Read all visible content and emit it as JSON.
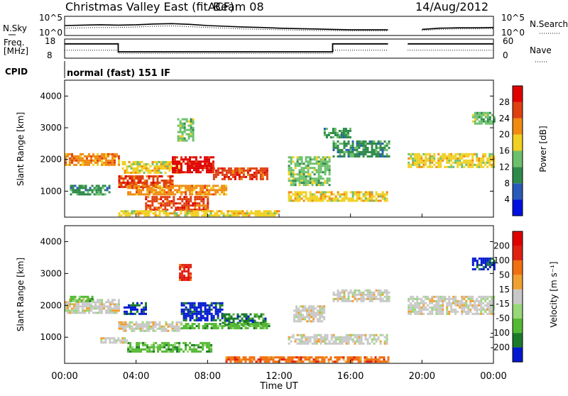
{
  "header": {
    "station": "Christmas Valley East (fitACF)",
    "beam": "Beam 08",
    "date": "14/Aug/2012"
  },
  "chart_data": [
    {
      "type": "line",
      "panel": "noise",
      "left_label": "N.Sky",
      "right_label": "N.Search",
      "left_ticks": [
        "10^5",
        "10^0"
      ],
      "right_ticks": [
        "10^5",
        "10^0"
      ],
      "x": [
        0,
        1,
        2,
        3,
        4,
        5,
        6,
        7,
        8,
        9,
        10,
        11,
        12,
        13,
        14,
        15,
        16,
        17,
        18.1,
        19.2,
        20,
        21,
        22,
        23,
        24
      ],
      "series": [
        {
          "values": [
            2.6,
            2.7,
            2.8,
            2.7,
            2.8,
            3.0,
            3.1,
            2.9,
            2.6,
            2.4,
            2.2,
            2.1,
            1.9,
            1.8,
            1.7,
            1.6,
            1.5,
            1.5,
            1.5,
            null,
            1.6,
            1.9,
            2.0,
            2.0,
            2.1
          ]
        },
        {
          "values": [
            1.9,
            2.0,
            2.1,
            2.1,
            2.2,
            2.4,
            2.5,
            2.3,
            2.1,
            1.9,
            1.7,
            1.6,
            1.5,
            1.4,
            1.3,
            1.3,
            1.2,
            1.2,
            1.2,
            null,
            1.3,
            1.6,
            1.7,
            1.7,
            1.8
          ]
        }
      ],
      "ylim": [
        0,
        5
      ]
    },
    {
      "type": "line",
      "panel": "frequency",
      "left_label_1": "Freq.",
      "left_label_2": "[MHz]",
      "right_label": "Nave",
      "left_ticks": [
        "18",
        "8"
      ],
      "right_ticks": [
        "60",
        "0"
      ],
      "x": [
        0,
        3,
        3,
        15,
        15,
        18.1,
        19.2,
        24
      ],
      "series": [
        {
          "values": [
            15,
            15,
            10,
            10,
            15,
            15,
            15,
            15
          ]
        },
        {
          "values": [
            11,
            11,
            9,
            9,
            11,
            11,
            11,
            11
          ]
        }
      ],
      "ylim": [
        6,
        18
      ]
    },
    {
      "type": "table",
      "panel": "cpid",
      "label": "CPID",
      "value": "normal (fast) 151 IF"
    },
    {
      "type": "heatmap",
      "panel": "power",
      "ylabel": "Slant Range [km]",
      "yticks": [
        "1000",
        "2000",
        "3000",
        "4000"
      ],
      "colorbar_label": "Power [dB]",
      "colorbar_ticks": [
        "4",
        "8",
        "12",
        "16",
        "20",
        "24",
        "28"
      ],
      "colors": [
        "#0010e0",
        "#2a5ab8",
        "#2e8a4a",
        "#6cc06c",
        "#f0d020",
        "#f08a10",
        "#e04010",
        "#e00000"
      ],
      "xlim": [
        0,
        24
      ],
      "ylim": [
        180,
        4500
      ],
      "gap": [
        18.1,
        19.2
      ],
      "bands": [
        {
          "x0": 0.0,
          "x1": 3.0,
          "y0": 1800,
          "y1": 2200,
          "level": 5
        },
        {
          "x0": 0.3,
          "x1": 2.5,
          "y0": 900,
          "y1": 1200,
          "level": 2
        },
        {
          "x0": 3.0,
          "x1": 6.0,
          "y0": 1150,
          "y1": 1500,
          "level": 6
        },
        {
          "x0": 3.2,
          "x1": 6.5,
          "y0": 1600,
          "y1": 1950,
          "level": 4
        },
        {
          "x0": 6.0,
          "x1": 8.3,
          "y0": 1600,
          "y1": 2100,
          "level": 7
        },
        {
          "x0": 8.3,
          "x1": 11.3,
          "y0": 1350,
          "y1": 1750,
          "level": 6
        },
        {
          "x0": 3.5,
          "x1": 9.0,
          "y0": 900,
          "y1": 1200,
          "level": 5
        },
        {
          "x0": 4.5,
          "x1": 8.0,
          "y0": 400,
          "y1": 850,
          "level": 6
        },
        {
          "x0": 3.0,
          "x1": 12.0,
          "y0": 200,
          "y1": 400,
          "level": 4
        },
        {
          "x0": 6.3,
          "x1": 7.2,
          "y0": 2600,
          "y1": 3300,
          "level": 3
        },
        {
          "x0": 12.5,
          "x1": 14.8,
          "y0": 1200,
          "y1": 2100,
          "level": 3
        },
        {
          "x0": 12.5,
          "x1": 18.1,
          "y0": 700,
          "y1": 1000,
          "level": 4
        },
        {
          "x0": 15.0,
          "x1": 18.1,
          "y0": 2100,
          "y1": 2600,
          "level": 2
        },
        {
          "x0": 14.5,
          "x1": 16.0,
          "y0": 2700,
          "y1": 3000,
          "level": 2
        },
        {
          "x0": 19.2,
          "x1": 24.0,
          "y0": 1750,
          "y1": 2200,
          "level": 4
        },
        {
          "x0": 22.8,
          "x1": 24.0,
          "y0": 3100,
          "y1": 3500,
          "level": 3
        }
      ]
    },
    {
      "type": "heatmap",
      "panel": "velocity",
      "ylabel": "Slant Range [km]",
      "yticks": [
        "1000",
        "2000",
        "3000",
        "4000"
      ],
      "colorbar_label": "Velocity [m s⁻¹]",
      "colorbar_ticks": [
        "200",
        "100",
        "50",
        "15",
        "-15",
        "-50",
        "-100",
        "-200"
      ],
      "colors": [
        "#0018d0",
        "#1a7a28",
        "#55b833",
        "#98d878",
        "#c8c8c8",
        "#f0a030",
        "#f07010",
        "#e02010",
        "#e00000"
      ],
      "xlim": [
        0,
        24
      ],
      "ylim": [
        180,
        4500
      ],
      "gap": [
        18.1,
        19.2
      ],
      "bands": [
        {
          "x0": 0.0,
          "x1": 3.0,
          "y0": 1750,
          "y1": 2200,
          "level": 4
        },
        {
          "x0": 0.3,
          "x1": 1.5,
          "y0": 2100,
          "y1": 2300,
          "level": 2
        },
        {
          "x0": 3.0,
          "x1": 6.5,
          "y0": 1200,
          "y1": 1500,
          "level": 4
        },
        {
          "x0": 3.3,
          "x1": 4.5,
          "y0": 1750,
          "y1": 2100,
          "level": 0
        },
        {
          "x0": 6.5,
          "x1": 8.8,
          "y0": 1550,
          "y1": 2100,
          "level": 0
        },
        {
          "x0": 8.8,
          "x1": 11.2,
          "y0": 1400,
          "y1": 1750,
          "level": 1
        },
        {
          "x0": 6.5,
          "x1": 11.5,
          "y0": 1250,
          "y1": 1450,
          "level": 2
        },
        {
          "x0": 3.5,
          "x1": 8.2,
          "y0": 550,
          "y1": 850,
          "level": 2
        },
        {
          "x0": 2.0,
          "x1": 3.5,
          "y0": 800,
          "y1": 1000,
          "level": 4
        },
        {
          "x0": 6.4,
          "x1": 7.0,
          "y0": 2800,
          "y1": 3300,
          "level": 7
        },
        {
          "x0": 9.0,
          "x1": 18.1,
          "y0": 200,
          "y1": 400,
          "level": 6
        },
        {
          "x0": 12.5,
          "x1": 18.1,
          "y0": 800,
          "y1": 1100,
          "level": 4
        },
        {
          "x0": 12.8,
          "x1": 14.5,
          "y0": 1500,
          "y1": 2000,
          "level": 4
        },
        {
          "x0": 15.0,
          "x1": 18.1,
          "y0": 2100,
          "y1": 2500,
          "level": 4
        },
        {
          "x0": 19.2,
          "x1": 24.0,
          "y0": 1750,
          "y1": 2300,
          "level": 4
        },
        {
          "x0": 22.8,
          "x1": 24.0,
          "y0": 3100,
          "y1": 3500,
          "level": 0
        }
      ]
    }
  ],
  "x_axis": {
    "label": "Time UT",
    "ticks": [
      "00:00",
      "04:00",
      "08:00",
      "12:00",
      "16:00",
      "20:00",
      "00:00"
    ]
  }
}
